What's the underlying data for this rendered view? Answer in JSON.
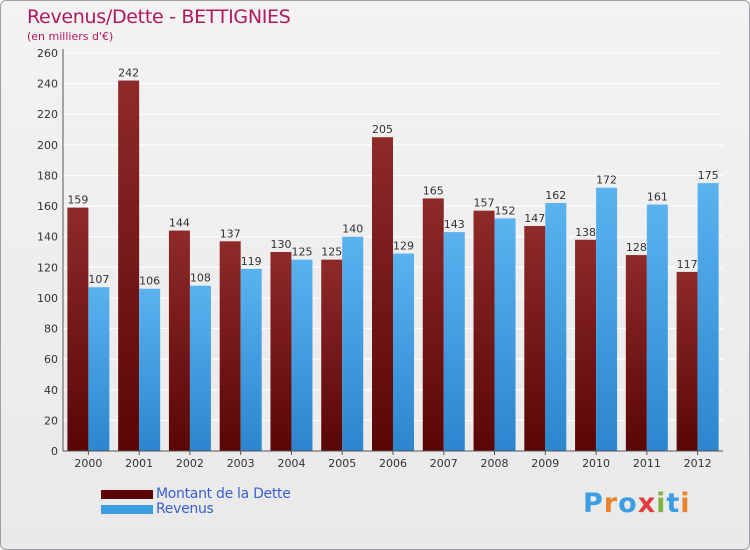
{
  "title": "Revenus/Dette - BETTIGNIES",
  "subtitle": "(en milliers d'€)",
  "legend": [
    {
      "label": "Montant de la Dette",
      "color": "#7d1616"
    },
    {
      "label": "Revenus",
      "color": "#3d9de2"
    }
  ],
  "logo": {
    "text": "Proxiti",
    "letter_colors": [
      "#3d9de2",
      "#e8832b",
      "#3d9de2",
      "#e23d3d",
      "#7cb342",
      "#3d9de2",
      "#e8832b"
    ]
  },
  "chart_data": {
    "type": "bar",
    "title": "Revenus/Dette - BETTIGNIES",
    "subtitle": "(en milliers d'€)",
    "categories": [
      "2000",
      "2001",
      "2002",
      "2003",
      "2004",
      "2005",
      "2006",
      "2007",
      "2008",
      "2009",
      "2010",
      "2011",
      "2012"
    ],
    "series": [
      {
        "name": "Montant de la Dette",
        "color": "#7d1616",
        "values": [
          159,
          242,
          144,
          137,
          130,
          125,
          205,
          165,
          157,
          147,
          138,
          128,
          117
        ]
      },
      {
        "name": "Revenus",
        "color": "#3d9de2",
        "values": [
          107,
          106,
          108,
          119,
          125,
          140,
          129,
          143,
          152,
          162,
          172,
          161,
          175
        ]
      }
    ],
    "ylim": [
      0,
      260
    ],
    "yticks": [
      0,
      20,
      40,
      60,
      80,
      100,
      120,
      140,
      160,
      180,
      200,
      220,
      240,
      260
    ],
    "grid": true,
    "legend_position": "bottom-left"
  }
}
